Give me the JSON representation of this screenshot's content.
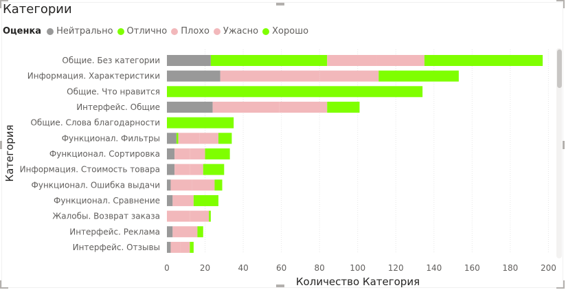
{
  "title": "Категории",
  "legend": {
    "title": "Оценка",
    "items": [
      {
        "name": "Нейтрально",
        "color": "#999999"
      },
      {
        "name": "Отлично",
        "color": "#7fff00"
      },
      {
        "name": "Плохо",
        "color": "#f2b8bb"
      },
      {
        "name": "Ужасно",
        "color": "#f2b8bb"
      },
      {
        "name": "Хорошо",
        "color": "#7fff00"
      }
    ]
  },
  "chart_data": {
    "type": "bar",
    "orientation": "horizontal",
    "stacked": true,
    "xlabel": "Количество Категория",
    "ylabel": "Категория",
    "xlim": [
      0,
      200
    ],
    "xticks": [
      0,
      20,
      40,
      60,
      80,
      100,
      120,
      140,
      160,
      180,
      200
    ],
    "grid": true,
    "legend_position": "top-left",
    "categories": [
      "Общие. Без категории",
      "Информация. Характеристики",
      "Общие. Что нравится",
      "Интерфейс. Общие",
      "Общие. Слова благодарности",
      "Функционал. Фильтры",
      "Функционал. Сортировка",
      "Информация. Стоимость товара",
      "Функционал. Ошибка выдачи",
      "Функционал. Сравнение",
      "Жалобы. Возврат заказа",
      "Интерфейс. Реклама",
      "Интерфейс. Отзывы"
    ],
    "series": [
      {
        "name": "Нейтрально",
        "color": "#999999",
        "values": [
          23,
          28,
          0,
          24,
          0,
          5,
          4,
          4,
          2,
          3,
          0,
          3,
          2
        ]
      },
      {
        "name": "Отлично",
        "color": "#7fff00",
        "values": [
          61,
          0,
          134,
          0,
          35,
          1,
          0,
          0,
          0,
          0,
          0,
          0,
          0
        ]
      },
      {
        "name": "Плохо",
        "color": "#f2b8bb",
        "values": [
          26,
          52,
          0,
          35,
          0,
          11,
          8,
          8,
          11,
          6,
          12,
          6,
          5
        ]
      },
      {
        "name": "Ужасно",
        "color": "#f2b8bb",
        "values": [
          25,
          31,
          0,
          25,
          0,
          10,
          8,
          7,
          12,
          5,
          10,
          7,
          5
        ]
      },
      {
        "name": "Хорошо",
        "color": "#7fff00",
        "values": [
          62,
          42,
          0,
          17,
          0,
          7,
          13,
          11,
          4,
          13,
          1,
          3,
          2
        ]
      }
    ]
  }
}
